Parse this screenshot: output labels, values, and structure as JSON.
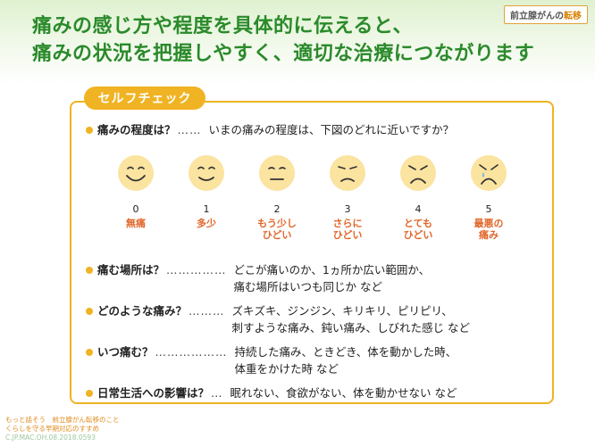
{
  "header": {
    "headline_1": "痛みの感じ方や程度を具体的に伝えると、",
    "headline_2": "痛みの状況を把握しやすく、適切な治療につながります",
    "tag_prefix": "前立腺がんの",
    "tag_accent": "転移"
  },
  "panel": {
    "title": "セルフチェック",
    "items": [
      {
        "question": "痛みの程度は？",
        "dots": "……",
        "answer_1": "いまの痛みの程度は、下図のどれに近いですか？",
        "answer_2": ""
      },
      {
        "question": "痛む場所は？",
        "dots": "……………",
        "answer_1": "どこが痛いのか、1ヵ所か広い範囲か、",
        "answer_2": "痛む場所はいつも同じか など"
      },
      {
        "question": "どのような痛み？",
        "dots": "………",
        "answer_1": "ズキズキ、ジンジン、キリキリ、ピリピリ、",
        "answer_2": "刺すような痛み、鈍い痛み、しびれた感じ など"
      },
      {
        "question": "いつ痛む？",
        "dots": "………………",
        "answer_1": "持続した痛み、ときどき、体を動かした時、",
        "answer_2": "体重をかけた時 など"
      },
      {
        "question": "日常生活への影響は？",
        "dots": "…",
        "answer_1": "眠れない、食欲がない、体を動かせない など",
        "answer_2": ""
      }
    ],
    "faces": [
      {
        "num": "0",
        "label_1": "無痛",
        "label_2": "",
        "icon": "smile-big-face-icon"
      },
      {
        "num": "1",
        "label_1": "多少",
        "label_2": "",
        "icon": "smile-face-icon"
      },
      {
        "num": "2",
        "label_1": "もう少し",
        "label_2": "ひどい",
        "icon": "neutral-face-icon"
      },
      {
        "num": "3",
        "label_1": "さらに",
        "label_2": "ひどい",
        "icon": "slight-frown-face-icon"
      },
      {
        "num": "4",
        "label_1": "とても",
        "label_2": "ひどい",
        "icon": "frown-face-icon"
      },
      {
        "num": "5",
        "label_1": "最悪の",
        "label_2": "痛み",
        "icon": "crying-face-icon"
      }
    ]
  },
  "footer": {
    "line_1": "もっと話そう　前立腺がん転移のこと",
    "line_2": "くらしを守る早期対応のすすめ",
    "code": "C.JP.MAC.OH.08.2018.0593"
  },
  "colors": {
    "headline": "#2a8a2a",
    "accent_orange": "#f0b323",
    "label_orange": "#e0662a",
    "face_fill": "#fbe3a0"
  }
}
